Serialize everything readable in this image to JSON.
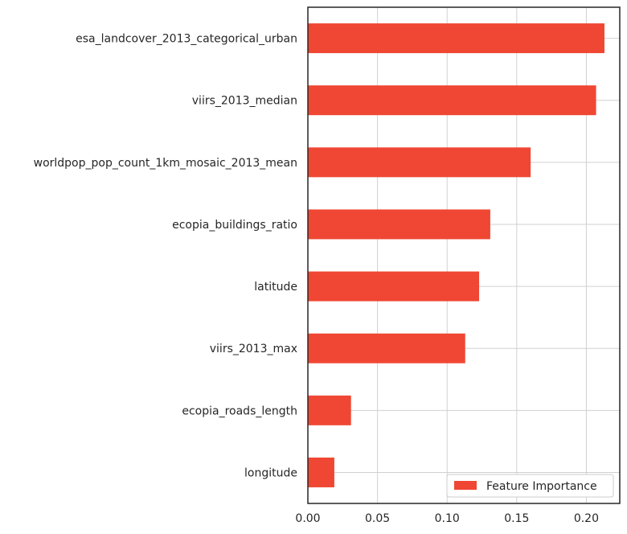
{
  "chart_data": {
    "type": "bar",
    "orientation": "horizontal",
    "categories": [
      "esa_landcover_2013_categorical_urban",
      "viirs_2013_median",
      "worldpop_pop_count_1km_mosaic_2013_mean",
      "ecopia_buildings_ratio",
      "latitude",
      "viirs_2013_max",
      "ecopia_roads_length",
      "longitude"
    ],
    "series": [
      {
        "name": "Feature Importance",
        "values": [
          0.213,
          0.207,
          0.16,
          0.131,
          0.123,
          0.113,
          0.031,
          0.019
        ]
      }
    ],
    "xlim": [
      0,
      0.224
    ],
    "xticks": [
      "0.00",
      "0.05",
      "0.10",
      "0.15",
      "0.20"
    ],
    "xtick_values": [
      0,
      0.05,
      0.1,
      0.15,
      0.2
    ],
    "title": "",
    "xlabel": "",
    "ylabel": "",
    "grid": true,
    "legend_position": "lower-right",
    "colors": {
      "bar": "#ef4733",
      "grid": "#d0d0d0",
      "axis": "#262626"
    }
  }
}
